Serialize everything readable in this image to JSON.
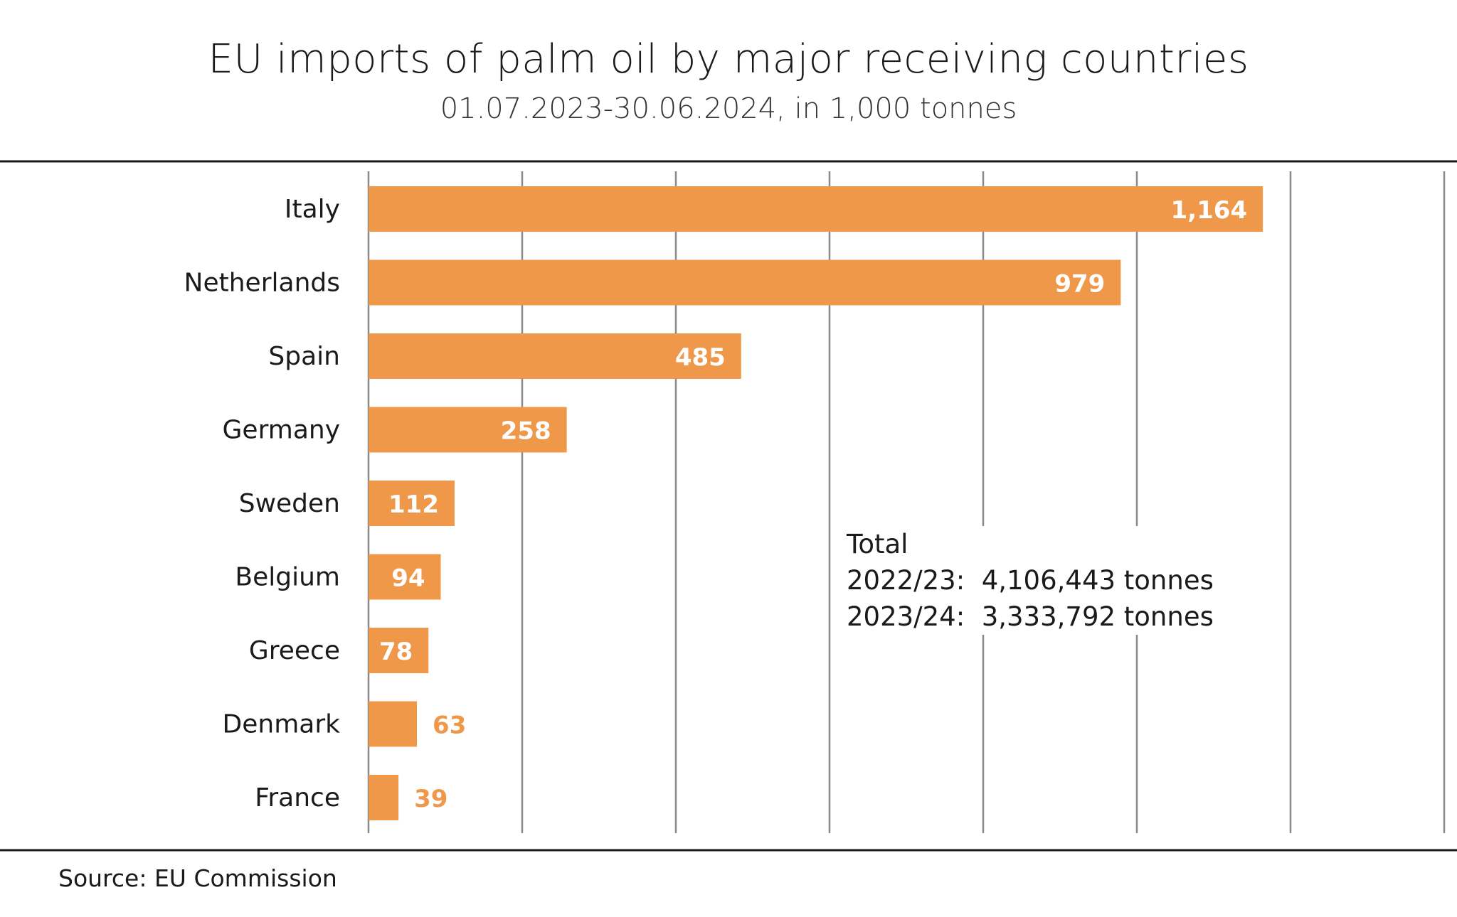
{
  "chart_data": {
    "type": "bar",
    "orientation": "horizontal",
    "title": "EU imports of palm oil by major receiving countries",
    "subtitle": "01.07.2023-30.06.2024, in 1,000 tonnes",
    "categories": [
      "Italy",
      "Netherlands",
      "Spain",
      "Germany",
      "Sweden",
      "Belgium",
      "Greece",
      "Denmark",
      "France"
    ],
    "values": [
      1164,
      979,
      485,
      258,
      112,
      94,
      78,
      63,
      39
    ],
    "value_labels": [
      "1,164",
      "979",
      "485",
      "258",
      "112",
      "94",
      "78",
      "63",
      "39"
    ],
    "xlim": [
      0,
      1400
    ],
    "grid_step": 200,
    "grid": true,
    "bar_color": "#f0984a",
    "label_inside_color": "#ffffff",
    "label_outside_color": "#f0984a",
    "xlabel": "",
    "ylabel": ""
  },
  "total": {
    "heading": "Total",
    "rows": [
      {
        "period": "2022/23:",
        "value": "4,106,443 tonnes"
      },
      {
        "period": "2023/24:",
        "value": "3,333,792 tonnes"
      }
    ]
  },
  "source": "Source: EU Commission"
}
